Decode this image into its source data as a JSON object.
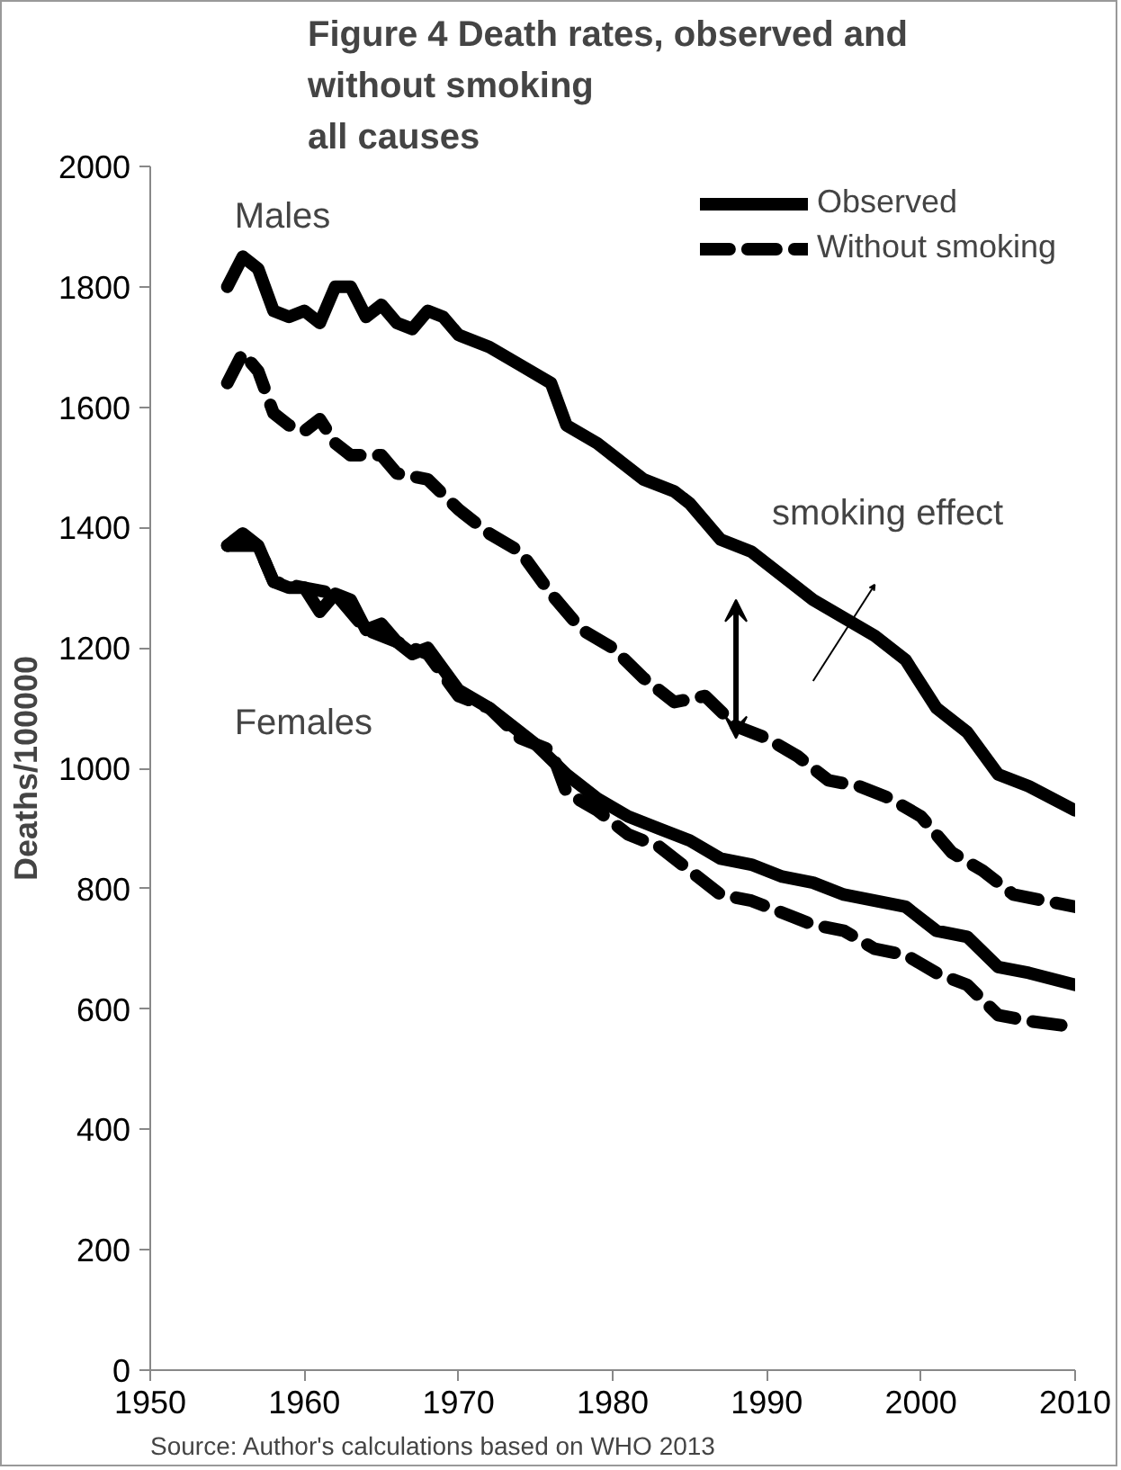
{
  "chart_data": {
    "type": "line",
    "title": "Figure 4  Death rates, observed and\nwithout smoking\nall causes",
    "ylabel": "Deaths/100000",
    "xlim": [
      1950,
      2010
    ],
    "xticks": [
      1950,
      1960,
      1970,
      1980,
      1990,
      2000,
      2010
    ],
    "ylim": [
      0,
      2000
    ],
    "yticks": [
      0,
      200,
      400,
      600,
      800,
      1000,
      1200,
      1400,
      1600,
      1800,
      2000
    ],
    "grid": false,
    "legend": "top right",
    "series": [
      {
        "name": "Observed",
        "color": "#000000",
        "line_style": "solid",
        "x": [
          1955,
          1956,
          1957,
          1958,
          1959,
          1960,
          1961,
          1962,
          1963,
          1964,
          1965,
          1966,
          1967,
          1968,
          1969,
          1970,
          1972,
          1974,
          1976,
          1977,
          1979,
          1980,
          1982,
          1984,
          1985,
          1987,
          1989,
          1991,
          1993,
          1995,
          1997,
          1999,
          2001,
          2003,
          2005,
          2007,
          2010
        ],
        "values": [
          1800,
          1850,
          1830,
          1760,
          1750,
          1760,
          1740,
          1800,
          1800,
          1750,
          1770,
          1740,
          1730,
          1760,
          1750,
          1720,
          1700,
          1670,
          1640,
          1570,
          1540,
          1520,
          1480,
          1460,
          1440,
          1380,
          1360,
          1320,
          1280,
          1250,
          1220,
          1180,
          1100,
          1060,
          990,
          970,
          930
        ]
      },
      {
        "name": "Without smoking",
        "color": "#000000",
        "line_style": "dashed",
        "x": [
          1955,
          1956,
          1957,
          1958,
          1959,
          1960,
          1961,
          1962,
          1963,
          1965,
          1966,
          1968,
          1970,
          1972,
          1974,
          1976,
          1978,
          1980,
          1982,
          1984,
          1986,
          1988,
          1990,
          1992,
          1994,
          1996,
          1998,
          2000,
          2002,
          2004,
          2006,
          2010
        ],
        "values": [
          1640,
          1690,
          1660,
          1590,
          1570,
          1560,
          1580,
          1540,
          1520,
          1520,
          1490,
          1480,
          1430,
          1390,
          1360,
          1290,
          1230,
          1200,
          1150,
          1110,
          1120,
          1070,
          1050,
          1020,
          980,
          970,
          950,
          920,
          860,
          830,
          790,
          770
        ]
      },
      {
        "color": "#000000",
        "line_style": "solid",
        "x": [
          1955,
          1956,
          1957,
          1958,
          1959,
          1960,
          1961,
          1962,
          1963,
          1964,
          1965,
          1966,
          1967,
          1968,
          1970,
          1972,
          1974,
          1975,
          1977,
          1979,
          1981,
          1983,
          1985,
          1987,
          1989,
          1991,
          1993,
          1995,
          1997,
          1999,
          2001,
          2003,
          2005,
          2007,
          2010
        ],
        "values": [
          1370,
          1390,
          1370,
          1310,
          1300,
          1300,
          1260,
          1290,
          1280,
          1230,
          1240,
          1210,
          1190,
          1200,
          1130,
          1100,
          1060,
          1040,
          990,
          950,
          920,
          900,
          880,
          850,
          840,
          820,
          810,
          790,
          780,
          770,
          730,
          720,
          670,
          660,
          640
        ]
      },
      {
        "color": "#000000",
        "line_style": "dashed",
        "x": [
          1955,
          1957,
          1958,
          1960,
          1962,
          1964,
          1966,
          1968,
          1970,
          1972,
          1974,
          1976,
          1977,
          1979,
          1981,
          1983,
          1985,
          1987,
          1989,
          1991,
          1993,
          1995,
          1997,
          1999,
          2001,
          2003,
          2005,
          2007,
          2010
        ],
        "values": [
          1370,
          1370,
          1310,
          1300,
          1290,
          1230,
          1210,
          1190,
          1120,
          1100,
          1050,
          1030,
          960,
          930,
          890,
          870,
          830,
          790,
          780,
          760,
          740,
          730,
          700,
          690,
          660,
          640,
          590,
          580,
          570
        ]
      }
    ],
    "annotations": [
      "Males",
      "Females",
      {
        "text": "smoking effect",
        "x": 1988,
        "y": 1390
      },
      "Source: Author's calculations based on WHO 2013"
    ]
  }
}
